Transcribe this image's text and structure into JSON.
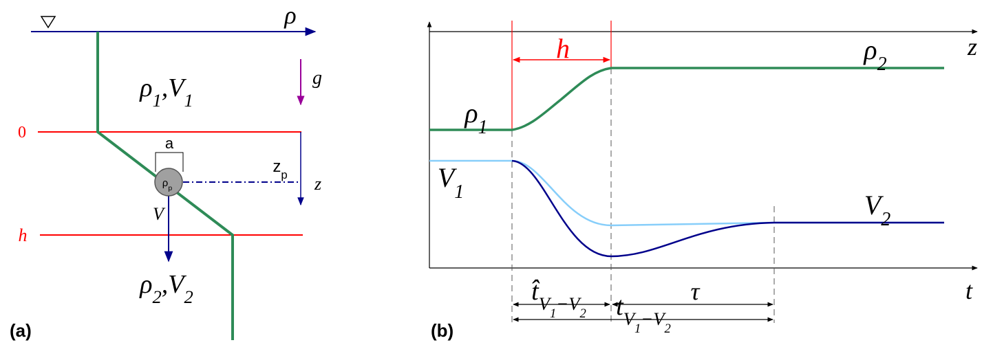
{
  "panel_a": {
    "tag": "(a)",
    "density_axis": {
      "text": "ρ"
    },
    "gravity": {
      "text": "g"
    },
    "upper_layer": [
      {
        "text": "ρ",
        "sub": "1"
      },
      {
        "text": ",V",
        "sub": "1"
      }
    ],
    "level_zero": {
      "text": "0"
    },
    "particle_diameter": {
      "text": "a"
    },
    "particle_density": {
      "text": "ρ",
      "sub": "p"
    },
    "particle_depth": {
      "text": "z",
      "sub": "p"
    },
    "depth_axis": {
      "text": "z"
    },
    "velocity": {
      "text": "V"
    },
    "level_h": {
      "text": "h"
    },
    "lower_layer": [
      {
        "text": "ρ",
        "sub": "2"
      },
      {
        "text": ",V",
        "sub": "2"
      }
    ]
  },
  "panel_b": {
    "tag": "(b)",
    "depth_axis": {
      "text": "z"
    },
    "interface_thickness": {
      "text": "h"
    },
    "rho_upper": {
      "text": "ρ",
      "sub": "1"
    },
    "rho_lower": {
      "text": "ρ",
      "sub": "2"
    },
    "v_upper": {
      "text": "V",
      "sub": "1"
    },
    "v_lower": {
      "text": "V",
      "sub": "2"
    },
    "time_axis": {
      "text": "t"
    },
    "crossing_time": {
      "text": "t̂",
      "sub": [
        {
          "text": "V",
          "sub": "1"
        },
        {
          "text": "−V",
          "sub": "2"
        }
      ]
    },
    "relaxation_time": {
      "text": "τ"
    },
    "total_time": {
      "text": "t",
      "sub": [
        {
          "text": "V",
          "sub": "1"
        },
        {
          "text": "−V",
          "sub": "2"
        }
      ]
    }
  }
}
